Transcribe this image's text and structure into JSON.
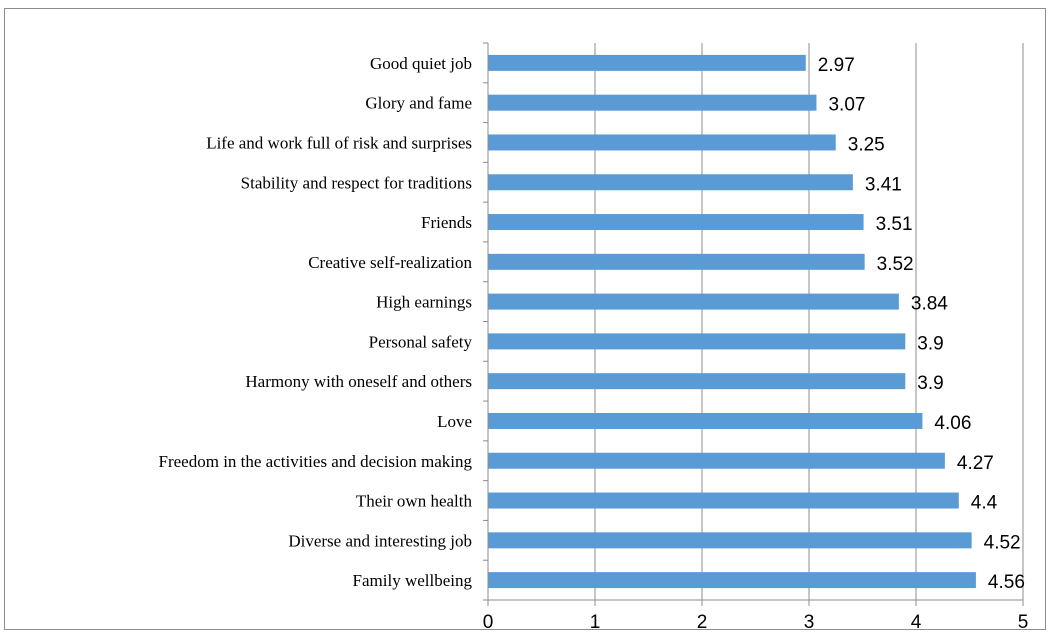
{
  "chart_data": {
    "type": "bar",
    "orientation": "horizontal",
    "categories": [
      "Good quiet job",
      "Glory and fame",
      "Life and work full of risk and surprises",
      "Stability and respect for traditions",
      "Friends",
      "Creative self-realization",
      "High earnings",
      "Personal safety",
      "Harmony with oneself and others",
      "Love",
      "Freedom in the activities and decision making",
      "Their own health",
      "Diverse and interesting job",
      "Family wellbeing"
    ],
    "values": [
      2.97,
      3.07,
      3.25,
      3.41,
      3.51,
      3.52,
      3.84,
      3.9,
      3.9,
      4.06,
      4.27,
      4.4,
      4.52,
      4.56
    ],
    "value_labels": [
      "2.97",
      "3.07",
      "3.25",
      "3.41",
      "3.51",
      "3.52",
      "3.84",
      "3.9",
      "3.9",
      "4.06",
      "4.27",
      "4.4",
      "4.52",
      "4.56"
    ],
    "title": "",
    "xlabel": "",
    "ylabel": "",
    "xlim": [
      0,
      5
    ],
    "x_ticks": [
      "0",
      "1",
      "2",
      "3",
      "4",
      "5"
    ],
    "grid": "vertical",
    "legend": "none",
    "bar_color": "#5b9bd5",
    "grid_color": "#8c8c8c"
  }
}
